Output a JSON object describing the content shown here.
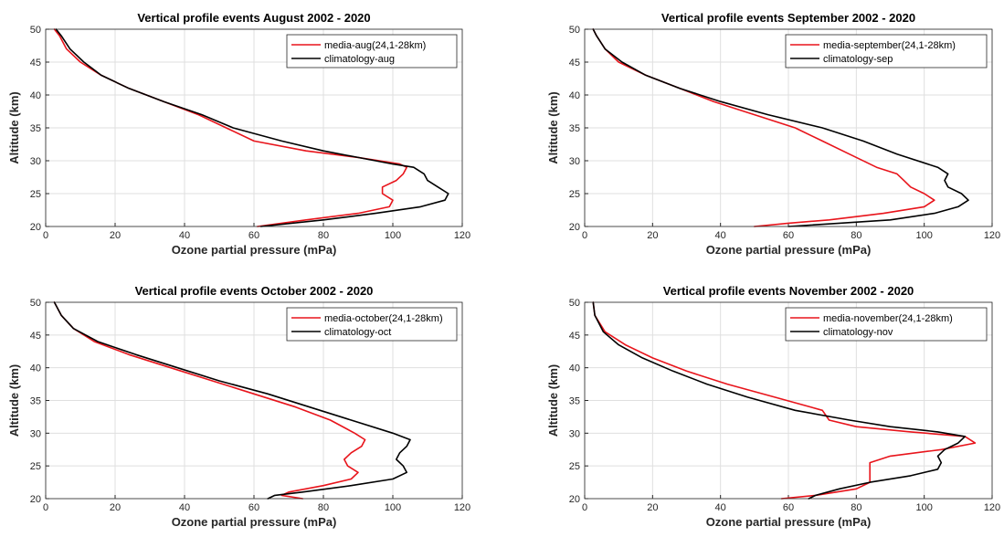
{
  "colors": {
    "median": "#e8141b",
    "climatology": "#000000",
    "grid": "#dfdfdf",
    "axis": "#262626"
  },
  "chart_data": [
    {
      "type": "line",
      "title": "Vertical profile events August 2002 - 2020",
      "xlabel": "Ozone partial pressure (mPa)",
      "ylabel": "Altitude (km)",
      "xlim": [
        0,
        120
      ],
      "ylim": [
        20,
        50
      ],
      "xticks": [
        "0",
        "20",
        "40",
        "60",
        "80",
        "100",
        "120"
      ],
      "yticks": [
        "20",
        "25",
        "30",
        "35",
        "40",
        "45",
        "50"
      ],
      "grid": true,
      "legend_position": "top-right",
      "series": [
        {
          "name": "media-aug(24,1-28km)",
          "color": "#e8141b",
          "x": [
            61,
            75,
            90,
            99,
            100,
            97,
            97,
            101,
            103,
            104,
            102,
            90,
            75,
            60,
            52,
            44,
            34,
            24,
            16,
            10,
            6,
            4,
            2.5
          ],
          "y": [
            20,
            21,
            22,
            23,
            24,
            25,
            26,
            27,
            28,
            29,
            29.5,
            30.5,
            31.5,
            33,
            35,
            37,
            39,
            41,
            43,
            45,
            47,
            49,
            50
          ]
        },
        {
          "name": "climatology-aug",
          "color": "#000000",
          "x": [
            62,
            80,
            95,
            108,
            115,
            116,
            113,
            110,
            109,
            106,
            100,
            90,
            80,
            68,
            54,
            45,
            34,
            24,
            16,
            11,
            7,
            4.5,
            3
          ],
          "y": [
            20,
            21,
            22,
            23,
            24,
            25,
            26,
            27,
            28,
            29,
            29.5,
            30.5,
            31.5,
            33,
            35,
            37,
            39,
            41,
            43,
            45,
            47,
            49,
            50
          ]
        }
      ]
    },
    {
      "type": "line",
      "title": "Vertical profile events September 2002 - 2020",
      "xlabel": "Ozone partial pressure (mPa)",
      "ylabel": "Altitude (km)",
      "xlim": [
        0,
        120
      ],
      "ylim": [
        20,
        50
      ],
      "xticks": [
        "0",
        "20",
        "40",
        "60",
        "80",
        "100",
        "120"
      ],
      "yticks": [
        "20",
        "25",
        "30",
        "35",
        "40",
        "45",
        "50"
      ],
      "grid": true,
      "legend_position": "top-right",
      "series": [
        {
          "name": "media-september(24,1-28km)",
          "color": "#e8141b",
          "x": [
            50,
            60,
            72,
            88,
            100,
            103,
            100,
            96,
            94,
            92,
            86,
            78,
            70,
            62,
            50,
            38,
            28,
            18,
            10,
            6,
            3.5,
            2.5
          ],
          "y": [
            20,
            20.5,
            21,
            22,
            23,
            24,
            25,
            26,
            27,
            28,
            29,
            31,
            33,
            35,
            37,
            39,
            41,
            43,
            45,
            47,
            49,
            50
          ]
        },
        {
          "name": "climatology-sep",
          "color": "#000000",
          "x": [
            60,
            75,
            90,
            103,
            110,
            113,
            111,
            107,
            106,
            107,
            104,
            92,
            82,
            70,
            54,
            40,
            28,
            18,
            11,
            6,
            3.5,
            2.5
          ],
          "y": [
            20,
            20.5,
            21,
            22,
            23,
            24,
            25,
            26,
            27,
            28,
            29,
            31,
            33,
            35,
            37,
            39,
            41,
            43,
            45,
            47,
            49,
            50
          ]
        }
      ]
    },
    {
      "type": "line",
      "title": "Vertical profile events October 2002 - 2020",
      "xlabel": "Ozone partial pressure (mPa)",
      "ylabel": "Altitude (km)",
      "xlim": [
        0,
        120
      ],
      "ylim": [
        20,
        50
      ],
      "xticks": [
        "0",
        "20",
        "40",
        "60",
        "80",
        "100",
        "120"
      ],
      "yticks": [
        "20",
        "25",
        "30",
        "35",
        "40",
        "45",
        "50"
      ],
      "grid": true,
      "legend_position": "top-right",
      "series": [
        {
          "name": "media-october(24,1-28km)",
          "color": "#e8141b",
          "x": [
            74,
            68,
            70,
            80,
            88,
            90,
            87,
            86,
            88,
            91,
            92,
            89,
            82,
            72,
            60,
            48,
            36,
            24,
            14,
            8,
            4.5,
            2.5
          ],
          "y": [
            20,
            20.5,
            21,
            22,
            23,
            24,
            25,
            26,
            27,
            28,
            29,
            30,
            32,
            34,
            36,
            38,
            40,
            42,
            44,
            46,
            48,
            50
          ]
        },
        {
          "name": "climatology-oct",
          "color": "#000000",
          "x": [
            64,
            66,
            74,
            88,
            100,
            104,
            103,
            101,
            102,
            104,
            105,
            100,
            88,
            76,
            64,
            50,
            38,
            26,
            15,
            8,
            4.5,
            2.5
          ],
          "y": [
            20,
            20.5,
            21,
            22,
            23,
            24,
            25,
            26,
            27,
            28,
            29,
            30,
            32,
            34,
            36,
            38,
            40,
            42,
            44,
            46,
            48,
            50
          ]
        }
      ]
    },
    {
      "type": "line",
      "title": "Vertical profile events November 2002 - 2020",
      "xlabel": "Ozone partial pressure (mPa)",
      "ylabel": "Altitude (km)",
      "xlim": [
        0,
        120
      ],
      "ylim": [
        20,
        50
      ],
      "xticks": [
        "0",
        "20",
        "40",
        "60",
        "80",
        "100",
        "120"
      ],
      "yticks": [
        "20",
        "25",
        "30",
        "35",
        "40",
        "45",
        "50"
      ],
      "grid": true,
      "legend_position": "top-right",
      "series": [
        {
          "name": "media-november(24,1-28km)",
          "color": "#e8141b",
          "x": [
            58,
            68,
            80,
            84,
            84,
            84,
            84,
            90,
            105,
            115,
            112,
            96,
            80,
            72,
            70,
            56,
            42,
            30,
            20,
            12,
            6,
            3,
            2.5
          ],
          "y": [
            20,
            20.5,
            21.5,
            22.5,
            23.5,
            24.5,
            25.5,
            26.5,
            27.5,
            28.5,
            29.5,
            30.2,
            31,
            32,
            33.5,
            35.5,
            37.5,
            39.5,
            41.5,
            43.5,
            45.5,
            48,
            50
          ]
        },
        {
          "name": "climatology-nov",
          "color": "#000000",
          "x": [
            66,
            68,
            75,
            84,
            96,
            104,
            105,
            104,
            106,
            110,
            112,
            104,
            90,
            78,
            62,
            48,
            36,
            26,
            17,
            10,
            5.5,
            3,
            2.5
          ],
          "y": [
            20,
            20.5,
            21.5,
            22.5,
            23.5,
            24.5,
            25.5,
            26.5,
            27.5,
            28.5,
            29.5,
            30.2,
            31,
            32,
            33.5,
            35.5,
            37.5,
            39.5,
            41.5,
            43.5,
            45.5,
            48,
            50
          ]
        }
      ]
    }
  ]
}
